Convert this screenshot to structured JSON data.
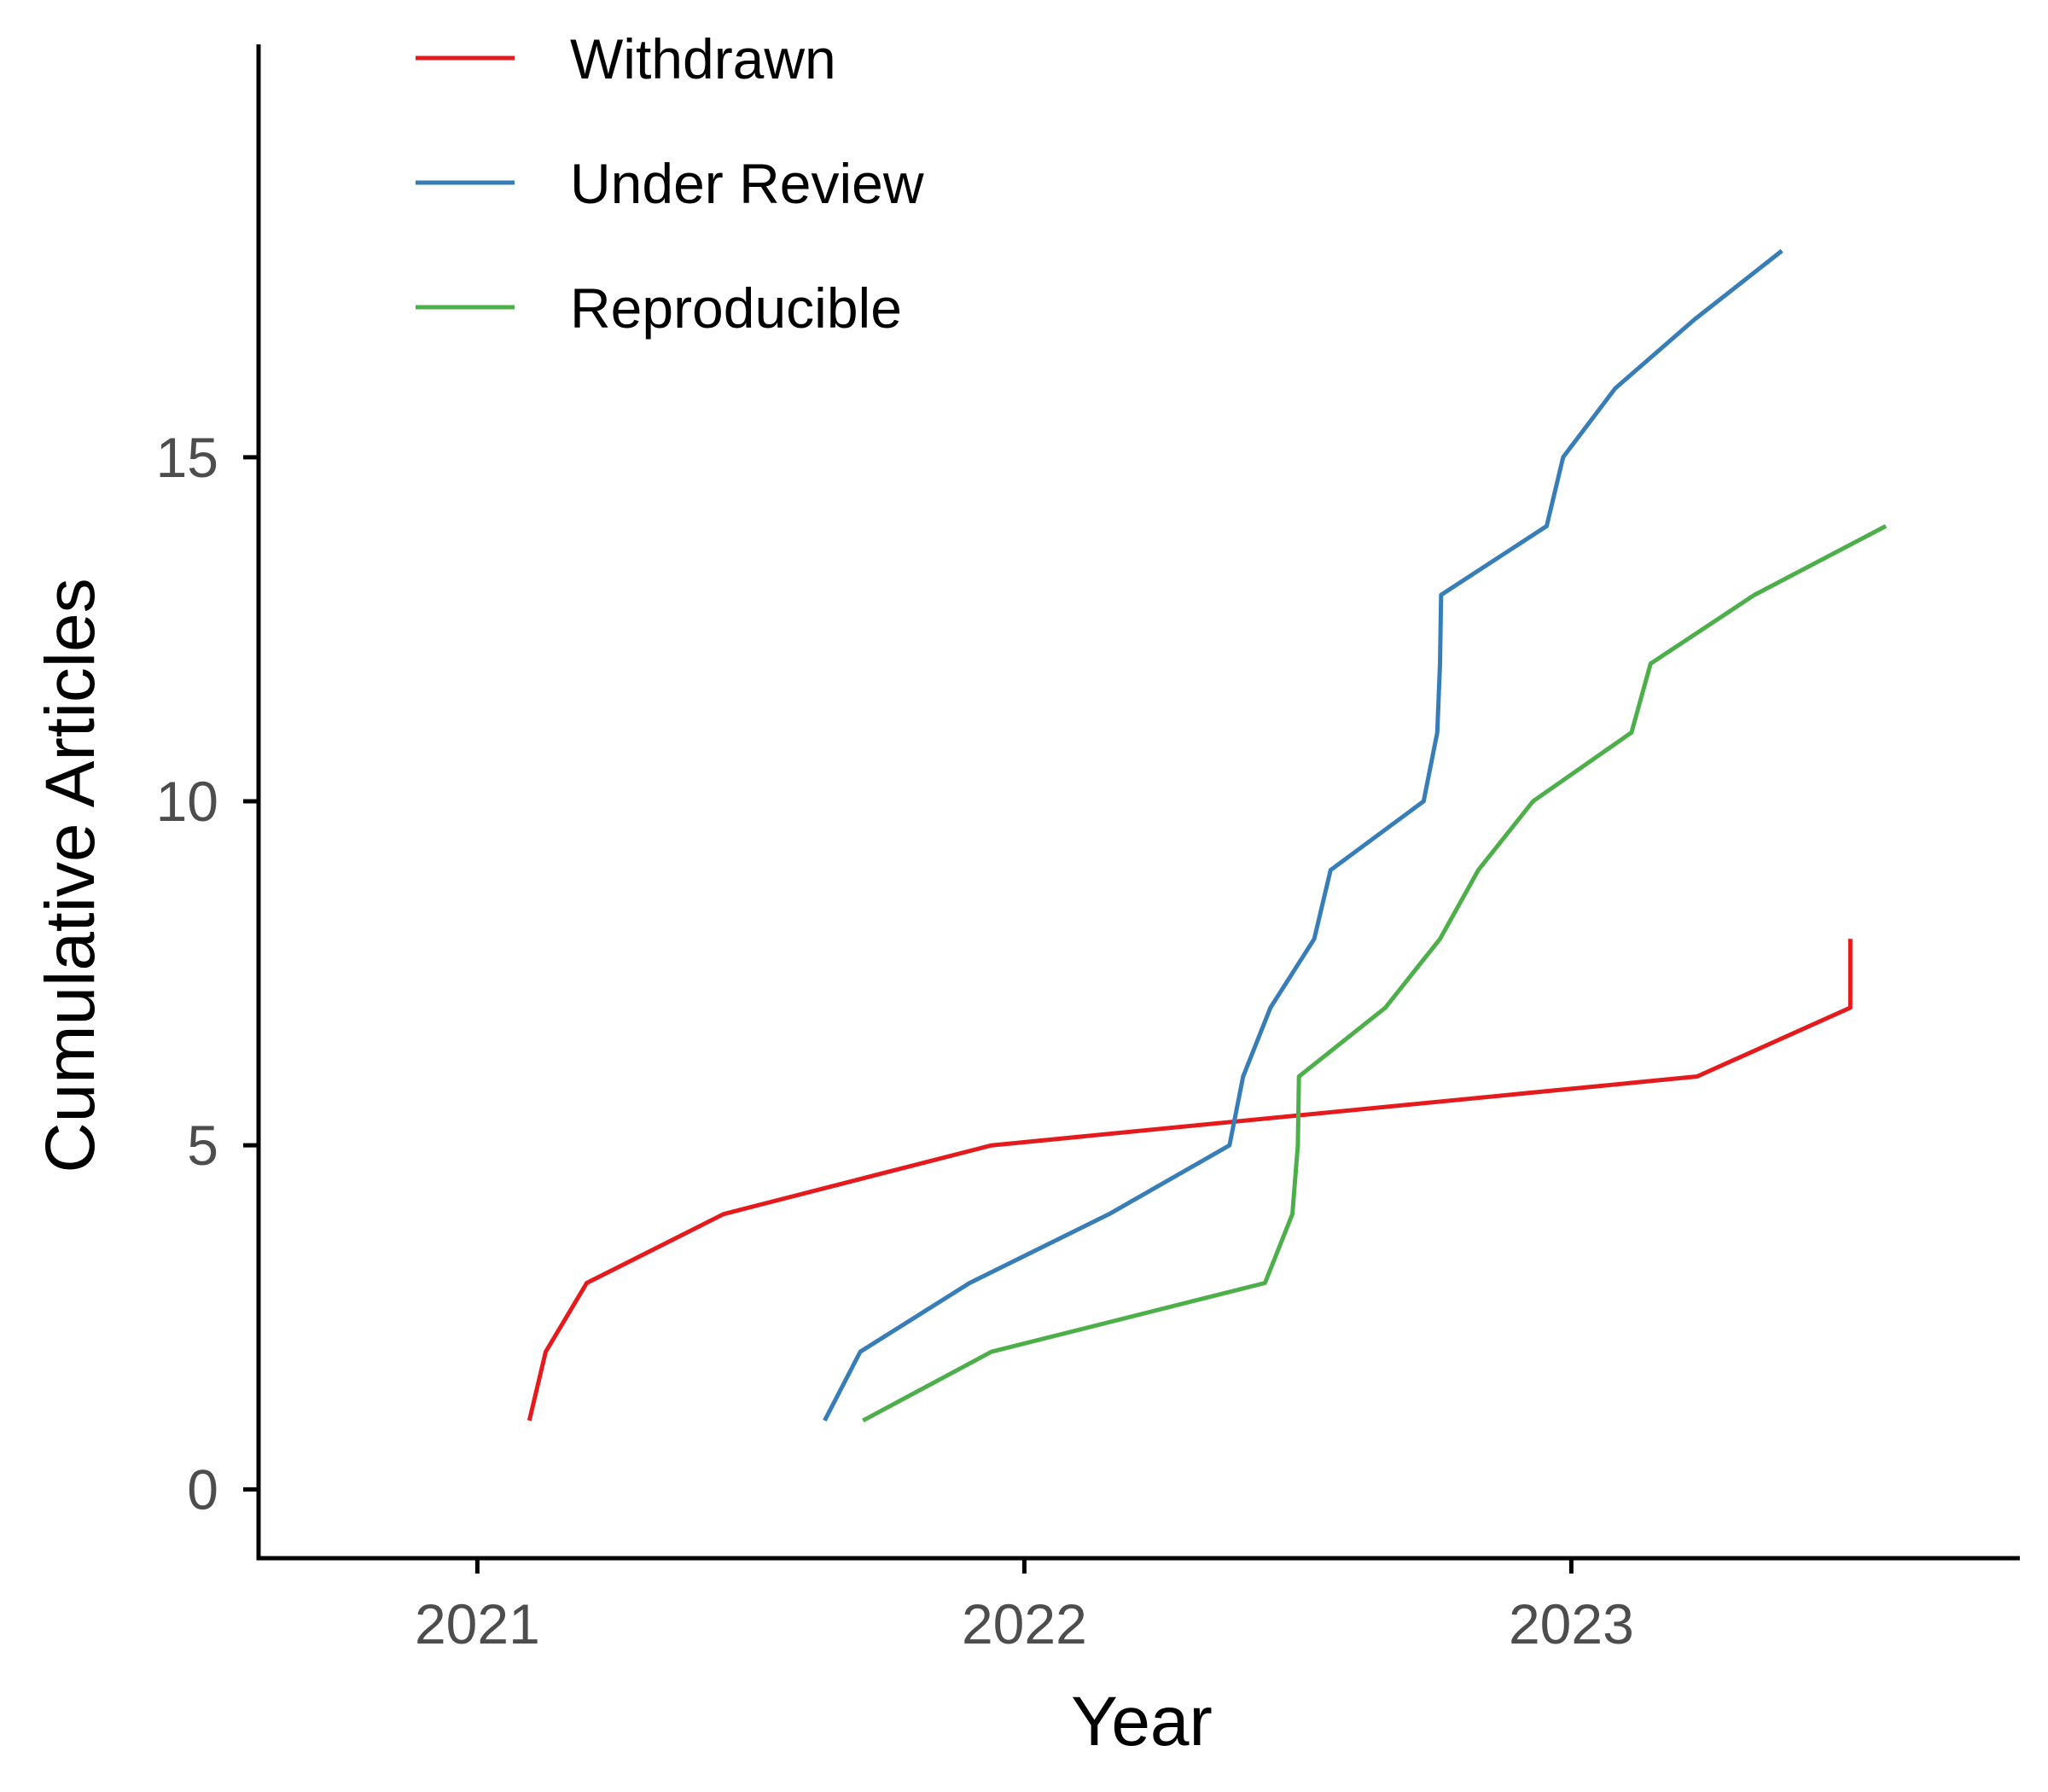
{
  "chart_data": {
    "type": "line",
    "xlabel": "Year",
    "ylabel": "Cumulative Articles",
    "xlim": [
      2020.6,
      2023.82
    ],
    "ylim": [
      -1,
      21
    ],
    "x_ticks": [
      {
        "value": 2021,
        "label": "2021"
      },
      {
        "value": 2022,
        "label": "2022"
      },
      {
        "value": 2023,
        "label": "2023"
      }
    ],
    "y_ticks": [
      {
        "value": 0,
        "label": "0"
      },
      {
        "value": 5,
        "label": "5"
      },
      {
        "value": 10,
        "label": "10"
      },
      {
        "value": 15,
        "label": "15"
      }
    ],
    "grid": false,
    "legend_position": "top-left",
    "series": [
      {
        "name": "Withdrawn",
        "color": "#e41a1c",
        "points": [
          [
            2021.095,
            1
          ],
          [
            2021.125,
            2
          ],
          [
            2021.2,
            3
          ],
          [
            2021.45,
            4
          ],
          [
            2021.94,
            5
          ],
          [
            2023.23,
            6
          ],
          [
            2023.51,
            7
          ],
          [
            2023.51,
            8
          ]
        ]
      },
      {
        "name": "Under Review",
        "color": "#377eb8",
        "points": [
          [
            2021.635,
            1
          ],
          [
            2021.7,
            2
          ],
          [
            2021.9,
            3
          ],
          [
            2022.155,
            4
          ],
          [
            2022.375,
            5
          ],
          [
            2022.4,
            6
          ],
          [
            2022.45,
            7
          ],
          [
            2022.53,
            8
          ],
          [
            2022.56,
            9
          ],
          [
            2022.73,
            10
          ],
          [
            2022.755,
            11
          ],
          [
            2022.76,
            12
          ],
          [
            2022.762,
            13
          ],
          [
            2022.955,
            14
          ],
          [
            2022.985,
            15
          ],
          [
            2023.08,
            16
          ],
          [
            2023.225,
            17
          ],
          [
            2023.385,
            18
          ]
        ]
      },
      {
        "name": "Reproducible",
        "color": "#4daf4a",
        "points": [
          [
            2021.705,
            1
          ],
          [
            2021.94,
            2
          ],
          [
            2022.44,
            3
          ],
          [
            2022.49,
            4
          ],
          [
            2022.5,
            5
          ],
          [
            2022.502,
            6
          ],
          [
            2022.66,
            7
          ],
          [
            2022.76,
            8
          ],
          [
            2022.83,
            9
          ],
          [
            2022.93,
            10
          ],
          [
            2023.11,
            11
          ],
          [
            2023.145,
            12
          ],
          [
            2023.335,
            13
          ],
          [
            2023.575,
            14
          ]
        ]
      }
    ]
  }
}
